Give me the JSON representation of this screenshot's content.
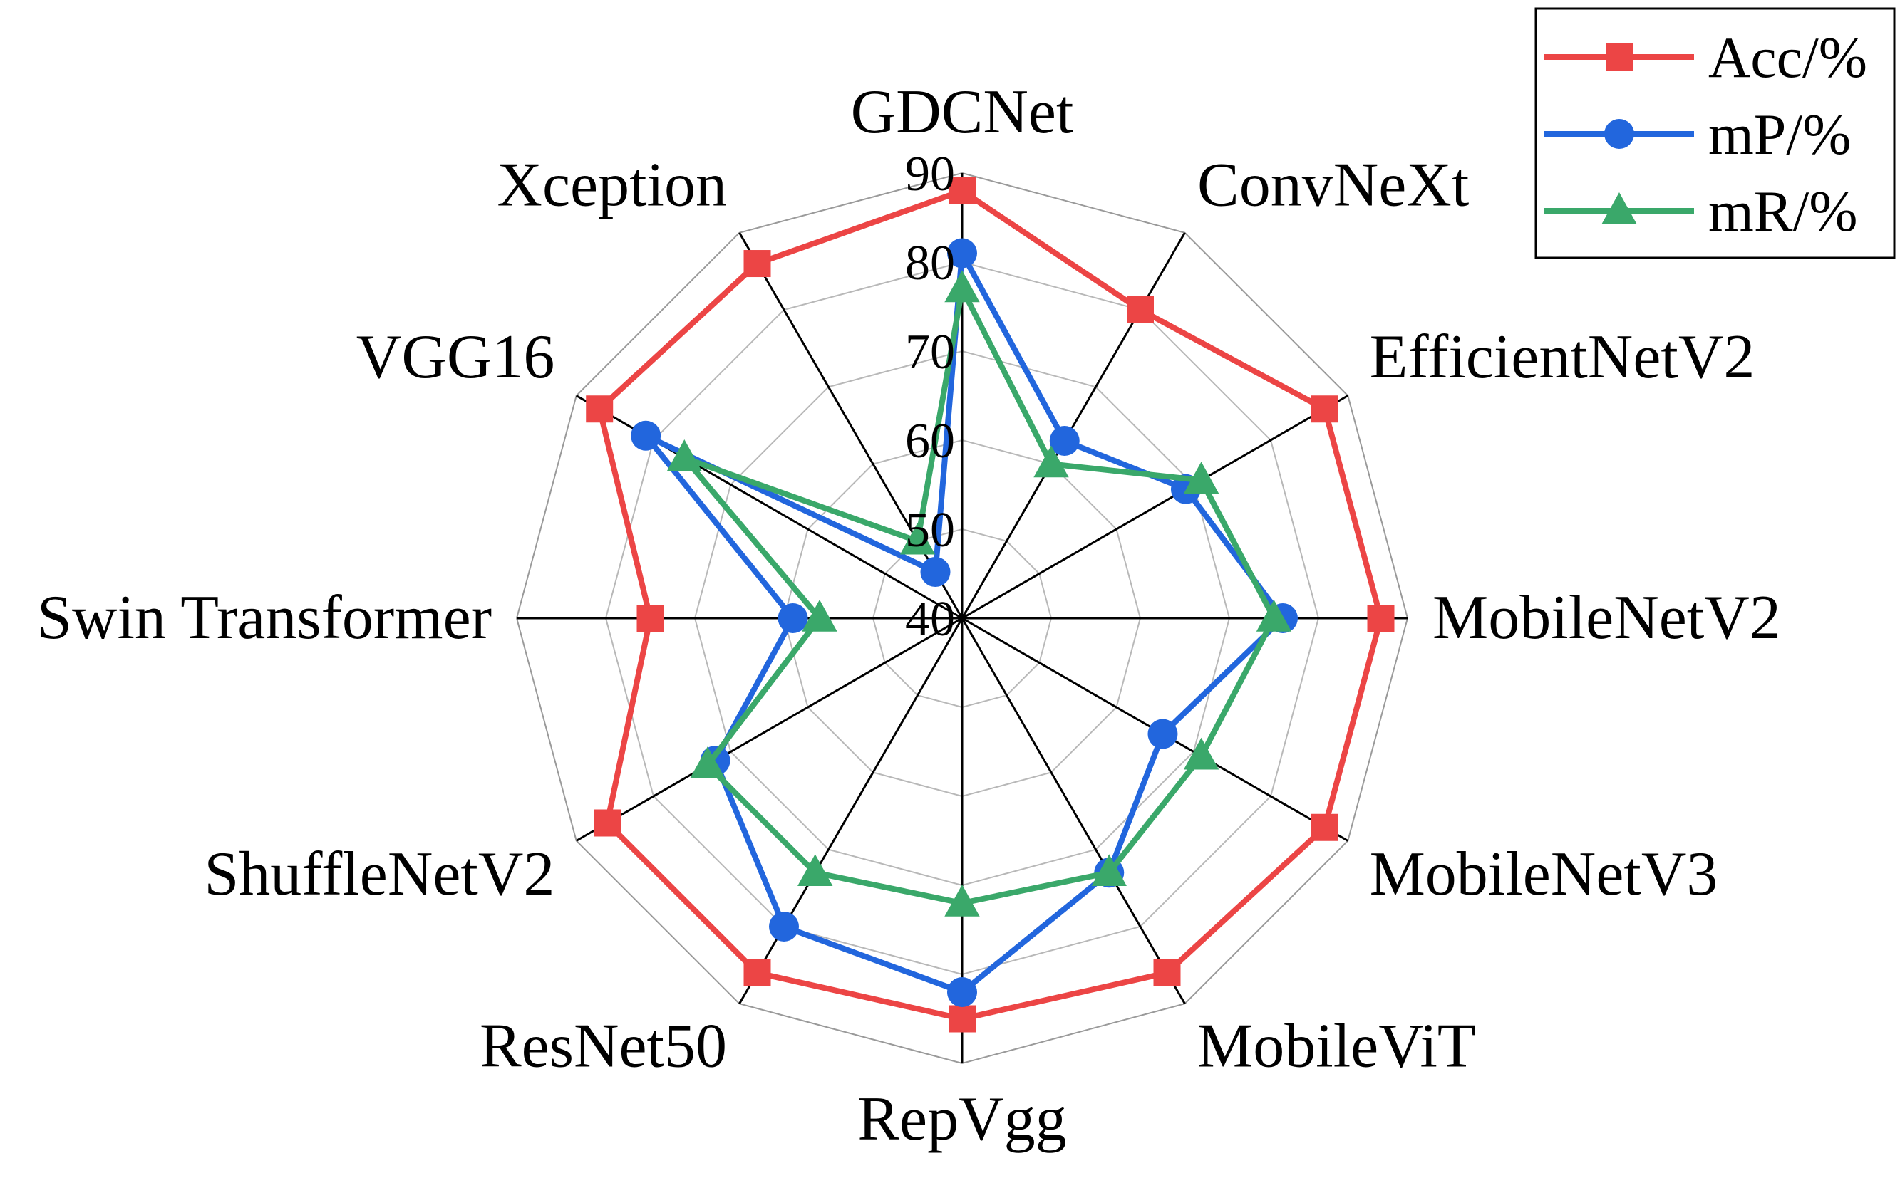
{
  "chart_data": {
    "type": "radar",
    "categories": [
      "GDCNet",
      "ConvNeXt",
      "EfficientNetV2",
      "MobileNetV2",
      "MobileNetV3",
      "MobileViT",
      "RepVgg",
      "ResNet50",
      "ShuffleNetV2",
      "Swin Transformer",
      "VGG16",
      "Xception"
    ],
    "rlim": [
      40,
      90
    ],
    "ticks": [
      "40",
      "50",
      "60",
      "70",
      "80",
      "90"
    ],
    "grid": true,
    "legend": "top-right",
    "series": [
      {
        "name": "Acc/%",
        "color": "#ec4545",
        "marker": "square",
        "values": [
          88,
          80,
          87,
          87,
          87,
          86,
          85,
          86,
          86,
          75,
          87,
          86
        ]
      },
      {
        "name": "mP/%",
        "color": "#2266dd",
        "marker": "circle",
        "values": [
          81,
          63,
          69,
          76,
          66,
          73,
          82,
          80,
          72,
          59,
          81,
          46
        ]
      },
      {
        "name": "mR/%",
        "color": "#3aa86a",
        "marker": "triangle",
        "values": [
          77,
          60,
          71,
          75,
          71,
          73,
          72,
          73,
          73,
          56,
          76,
          50
        ]
      }
    ]
  }
}
